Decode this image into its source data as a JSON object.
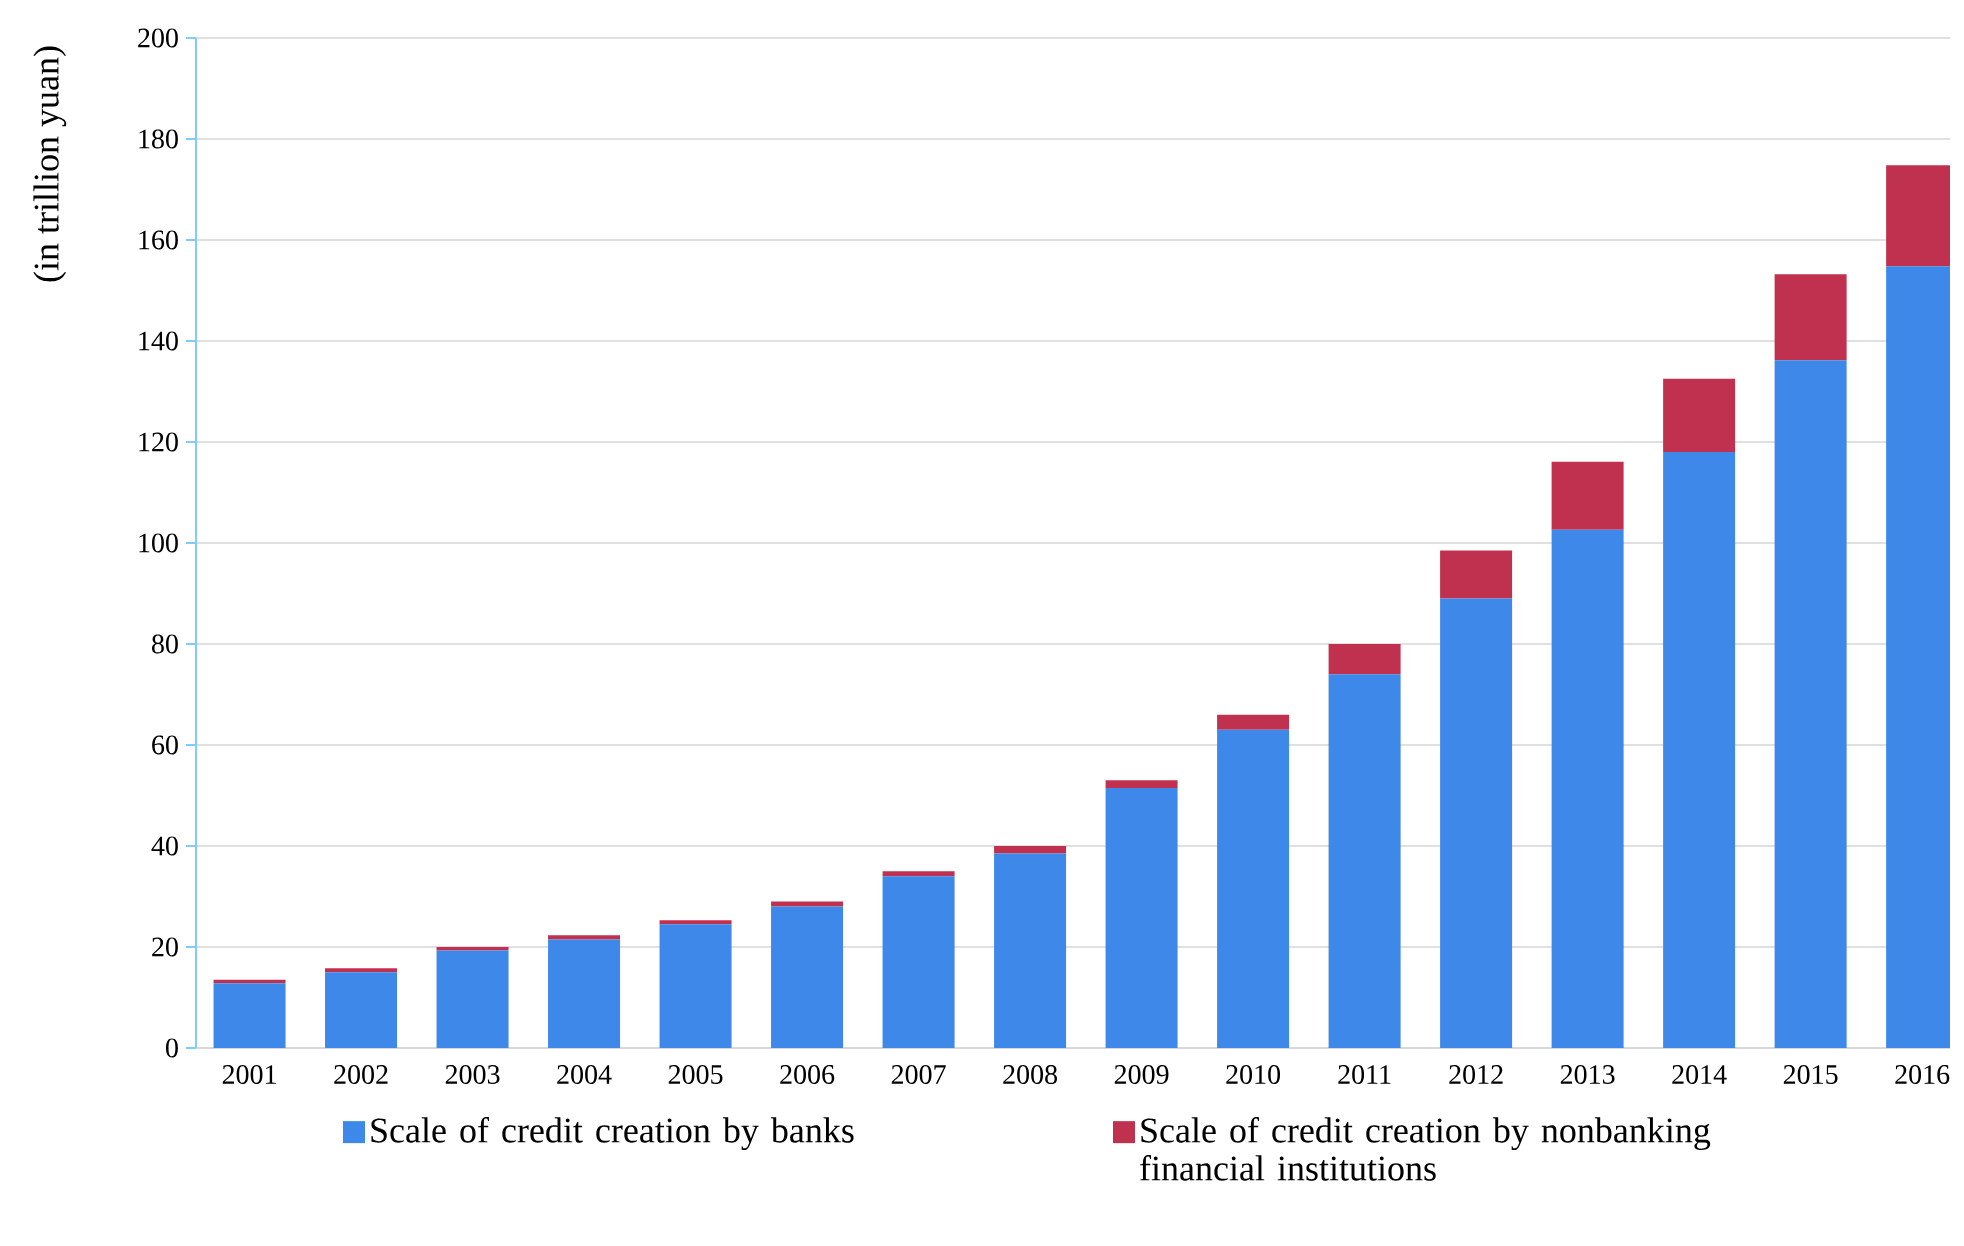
{
  "chart_data": {
    "type": "bar",
    "stacked": true,
    "ylabel": "(in trillion yuan)",
    "categories": [
      "2001",
      "2002",
      "2003",
      "2004",
      "2005",
      "2006",
      "2007",
      "2008",
      "2009",
      "2010",
      "2011",
      "2012",
      "2013",
      "2014",
      "2015",
      "2016"
    ],
    "series": [
      {
        "name": "Scale of credit creation by banks",
        "color": "#3d88e8",
        "values": [
          12.8,
          15,
          19.3,
          21.5,
          24.5,
          28,
          34,
          38.5,
          51.5,
          63,
          74,
          89,
          102.6,
          118,
          136.2,
          154.8
        ]
      },
      {
        "name": "Scale of credit creation by nonbanking financial institutions",
        "color": "#c0314f",
        "values": [
          0.7,
          0.8,
          0.7,
          0.8,
          0.8,
          1,
          1,
          1.5,
          1.5,
          3,
          6,
          9.5,
          13.5,
          14.5,
          17,
          20
        ]
      }
    ],
    "ylim": [
      0,
      200
    ],
    "yticks": [
      0,
      20,
      40,
      60,
      80,
      100,
      120,
      140,
      160,
      180,
      200
    ],
    "grid": "y",
    "legend": "bottom"
  }
}
